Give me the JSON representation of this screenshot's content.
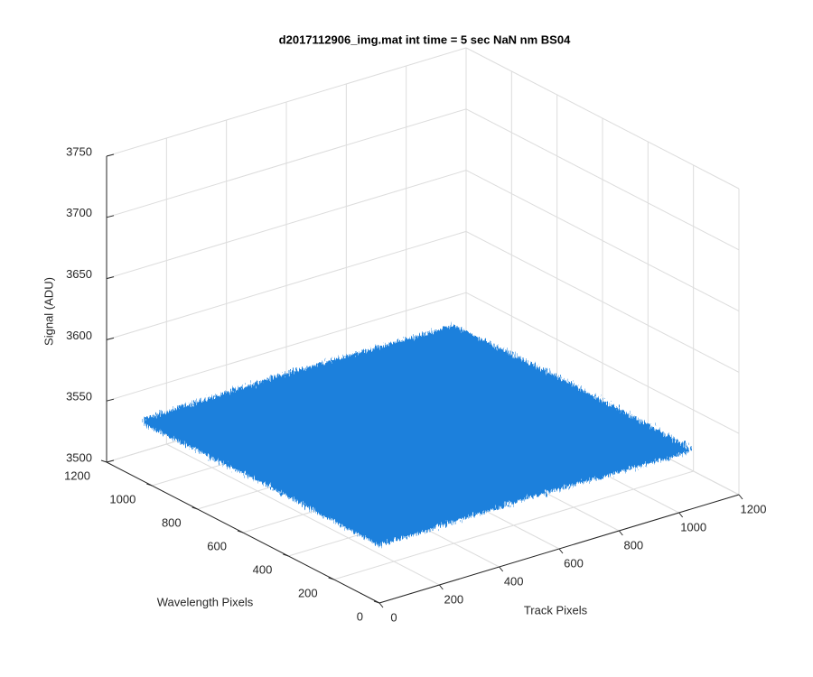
{
  "chart_data": {
    "type": "surface",
    "title": "d2017112906_img.mat int time = 5 sec  NaN nm BS04",
    "xlabel": "Track Pixels",
    "ylabel": "Wavelength Pixels",
    "zlabel": "Signal (ADU)",
    "x": [
      0,
      256,
      512,
      768,
      1024
    ],
    "y": [
      0,
      256,
      512,
      768,
      1024
    ],
    "z": [
      [
        3550,
        3551,
        3552,
        3551,
        3550
      ],
      [
        3551,
        3552,
        3553,
        3552,
        3551
      ],
      [
        3552,
        3553,
        3553,
        3553,
        3552
      ],
      [
        3551,
        3552,
        3553,
        3552,
        3551
      ],
      [
        3550,
        3551,
        3552,
        3551,
        3550
      ]
    ],
    "color": "#1f80dc",
    "xlim": [
      0,
      1200
    ],
    "xticks": [
      0,
      200,
      400,
      600,
      800,
      1000,
      1200
    ],
    "ylim": [
      0,
      1200
    ],
    "yticks": [
      0,
      200,
      400,
      600,
      800,
      1000,
      1200
    ],
    "zlim": [
      3500,
      3750
    ],
    "zticks": [
      3500,
      3550,
      3600,
      3650,
      3700,
      3750
    ],
    "grid": true
  }
}
